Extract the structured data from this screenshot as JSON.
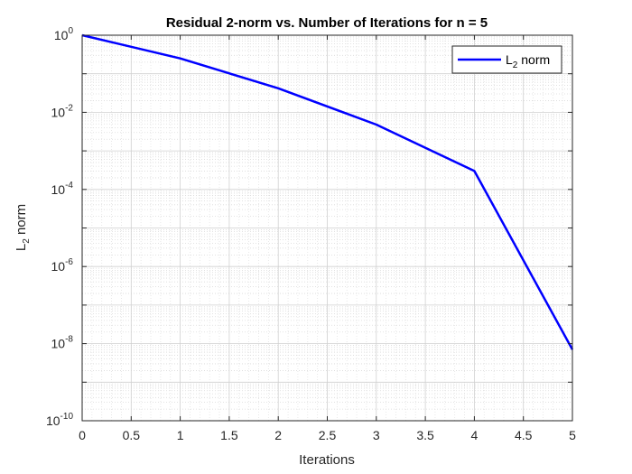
{
  "chart_data": {
    "type": "line",
    "title": "Residual 2-norm vs. Number of Iterations for n = 5",
    "xlabel": "Iterations",
    "ylabel": {
      "base": "L",
      "sub": "2",
      "rest": " norm"
    },
    "xlim": [
      0,
      5
    ],
    "ylim": [
      1e-10,
      1
    ],
    "yscale": "log",
    "grid": true,
    "minor_grid": true,
    "legend_position": "top-right",
    "x_ticks": [
      "0",
      "0.5",
      "1",
      "1.5",
      "2",
      "2.5",
      "3",
      "3.5",
      "4",
      "4.5",
      "5"
    ],
    "y_ticks": [
      {
        "base": "10",
        "exp": "0"
      },
      {
        "base": "10",
        "exp": "-2"
      },
      {
        "base": "10",
        "exp": "-4"
      },
      {
        "base": "10",
        "exp": "-6"
      },
      {
        "base": "10",
        "exp": "-8"
      },
      {
        "base": "10",
        "exp": "-10"
      }
    ],
    "series": [
      {
        "name": {
          "base": "L",
          "sub": "2",
          "rest": " norm"
        },
        "color": "#0000ff",
        "x": [
          0,
          1,
          2,
          3,
          4,
          5
        ],
        "y": [
          1,
          0.25,
          0.042,
          0.0048,
          0.0003,
          7e-09
        ]
      }
    ]
  }
}
